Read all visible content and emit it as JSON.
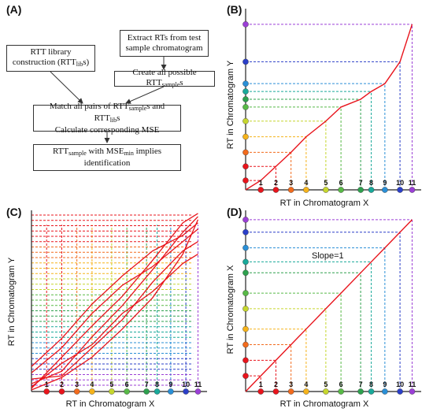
{
  "panels": {
    "a": {
      "label": "(A)",
      "box_lib_1": "RTT library",
      "box_lib_2a": "construction (RTT",
      "box_lib_2sub": "lib",
      "box_lib_2b": "s)",
      "box_extract": "Extract RTs from test sample chromatogram",
      "box_create_a": "Create all possible RTT",
      "box_create_sub": "sample",
      "box_create_b": "s",
      "box_match_1a": "Match all pairs of RTT",
      "box_match_1sub1": "sample",
      "box_match_1b": "s and RTT",
      "box_match_1sub2": "lib",
      "box_match_1c": "s",
      "box_match_2": "Calculate corresponding MSE",
      "box_ident_1a": "RTT",
      "box_ident_1sub1": "sample",
      "box_ident_1b": " with MSE",
      "box_ident_1sub2": "min",
      "box_ident_1c": " implies",
      "box_ident_2": "identification"
    },
    "b": {
      "label": "(B)",
      "xlabel": "RT in Chromatogram X",
      "ylabel": "RT in Chromatogram Y"
    },
    "c": {
      "label": "(C)",
      "xlabel": "RT in Chromatogram X",
      "ylabel": "RT in Chromatogram Y"
    },
    "d": {
      "label": "(D)",
      "xlabel": "RT in Chromatogram X",
      "ylabel": "RT in Chromatogram X",
      "annotation": "Slope=1"
    }
  },
  "ticks": [
    "1",
    "2",
    "3",
    "4",
    "5",
    "6",
    "7",
    "8",
    "9",
    "10",
    "11"
  ],
  "colors": [
    "#e8141c",
    "#e8141c",
    "#f26b1d",
    "#f5b31b",
    "#c6d62e",
    "#58b947",
    "#2ea04e",
    "#19a99a",
    "#2a8fd6",
    "#2b3fc8",
    "#9b3fd6"
  ],
  "x_positions": [
    1,
    2,
    3,
    4,
    5.3,
    6.3,
    7.6,
    8.3,
    9.2,
    10.2,
    11
  ],
  "y_positions_b": [
    0.6,
    1.5,
    2.4,
    3.4,
    4.4,
    5.3,
    5.8,
    6.3,
    6.8,
    8.2,
    10.6
  ],
  "y_positions_d": [
    1,
    2,
    3,
    4,
    5.3,
    6.3,
    7.6,
    8.3,
    9.2,
    10.2,
    11
  ]
}
